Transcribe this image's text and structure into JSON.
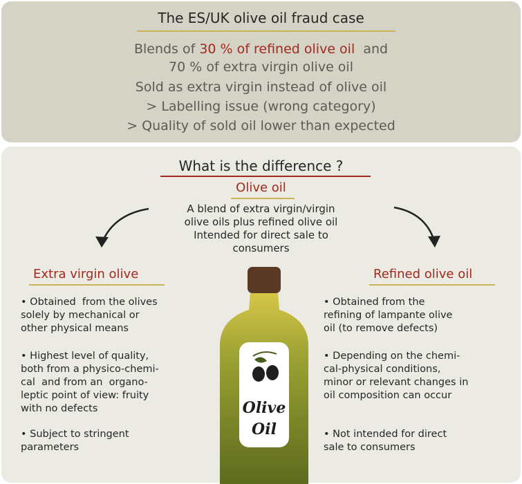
{
  "fraud_case": {
    "title": "The ES/UK olive oil fraud case",
    "blend_line": {
      "prefix": "Blends of ",
      "highlight": "30 % of refined olive oil",
      "suffix": "  and"
    },
    "blend_line_2": "70 % of extra virgin olive oil",
    "lines": [
      "Sold as extra virgin instead of olive oil",
      "> Labelling issue (wrong category)",
      "> Quality of sold oil lower than expected"
    ]
  },
  "difference": {
    "title": "What is the difference ?",
    "olive_oil": {
      "heading": "Olive oil",
      "lines": [
        "A blend of extra virgin/virgin",
        "olive oils plus refined olive oil",
        "Intended for direct sale to",
        "consumers"
      ]
    },
    "columns": [
      {
        "heading": "Extra virgin olive",
        "bullets": [
          [
            "• Obtained  from the olives",
            "solely by mechanical or",
            "other physical means"
          ],
          [
            "• Highest level of quality,",
            "both from a physico-chemi-",
            "cal  and from an  organo-",
            "leptic point of view: fruity",
            "with no defects"
          ],
          [
            "• Subject to stringent",
            "parameters"
          ]
        ]
      },
      {
        "heading": "Refined olive oil",
        "bullets": [
          [
            "• Obtained from the",
            "refining of lampante olive",
            "oil (to remove defects)"
          ],
          [
            "• Depending on the chemi-",
            "cal-physical conditions,",
            "minor or relevant changes in",
            "oil composition can occur"
          ],
          [
            "• Not intended for direct",
            "sale to consumers"
          ]
        ]
      }
    ],
    "bottle_label": [
      "Olive",
      "Oil"
    ]
  }
}
